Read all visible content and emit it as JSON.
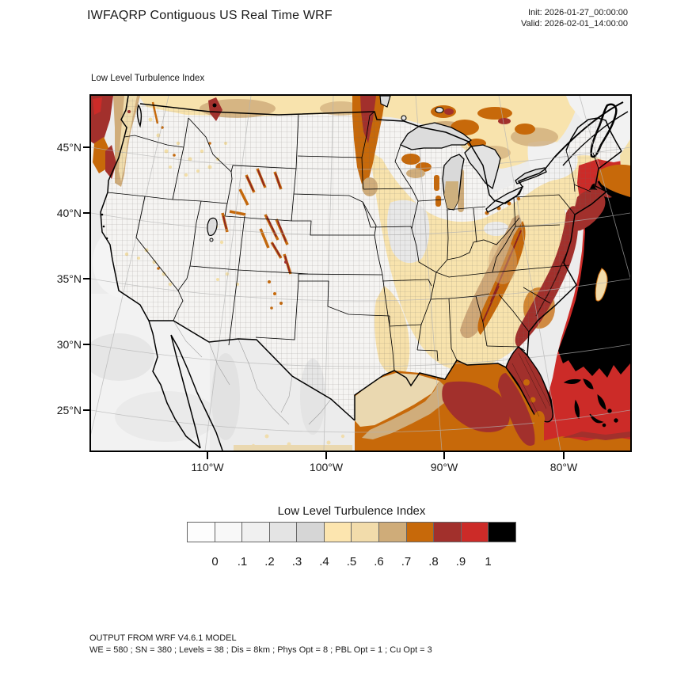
{
  "header": {
    "title": "IWFAQRP Contiguous US Real Time WRF",
    "init_label": "Init: 2026-01-27_00:00:00",
    "valid_label": "Valid: 2026-02-01_14:00:00"
  },
  "map": {
    "subtitle": "Low Level Turbulence Index",
    "lat_ticks": [
      "45°N",
      "40°N",
      "35°N",
      "30°N",
      "25°N"
    ],
    "lon_ticks": [
      "110°W",
      "100°W",
      "90°W",
      "80°W"
    ]
  },
  "colorbar": {
    "title": "Low Level Turbulence Index",
    "tick_labels": [
      "0",
      ".1",
      ".2",
      ".3",
      ".4",
      ".5",
      ".6",
      ".7",
      ".8",
      ".9",
      "1"
    ],
    "colors": [
      "#fdfdfd",
      "#f8f8f8",
      "#f0f0f0",
      "#e4e4e4",
      "#d6d6d6",
      "#fce5af",
      "#f2dcab",
      "#cfac79",
      "#c7690a",
      "#a2302c",
      "#cc2b28",
      "#000000"
    ]
  },
  "footer": {
    "line1": "OUTPUT FROM WRF V4.6.1 MODEL",
    "line2": "WE = 580 ; SN = 380 ; Levels = 38 ; Dis = 8km ; Phys Opt = 8 ; PBL Opt = 1 ; Cu Opt = 3"
  },
  "chart_data": {
    "type": "heatmap",
    "subtype": "filled-contour-weather-map",
    "title": "Low Level Turbulence Index",
    "model": "WRF V4.6.1",
    "run_header": "IWFAQRP Contiguous US Real Time WRF",
    "init_time": "2026-01-27_00:00:00",
    "valid_time": "2026-02-01_14:00:00",
    "region": "Contiguous United States (Lambert conformal)",
    "x_tick_longitudes_deg_west": [
      110,
      100,
      90,
      80
    ],
    "y_tick_latitudes_deg_north": [
      45,
      40,
      35,
      30,
      25
    ],
    "contour_levels": [
      0,
      0.1,
      0.2,
      0.3,
      0.4,
      0.5,
      0.6,
      0.7,
      0.8,
      0.9,
      1
    ],
    "value_range": [
      0,
      1
    ],
    "palette": [
      "#fdfdfd",
      "#f8f8f8",
      "#f0f0f0",
      "#e4e4e4",
      "#d6d6d6",
      "#fce5af",
      "#f2dcab",
      "#cfac79",
      "#c7690a",
      "#a2302c",
      "#cc2b28",
      "#000000"
    ],
    "high_value_regions": [
      "Western Atlantic off the Southeast coast: > 1 (black)",
      "Atlantic / Gulf Stream along East Coast and Florida: 0.8 - 1 (red)",
      "Mid-Atlantic coastal plain NJ to GA: 0.8 - 0.9 (dark red)",
      "Eastern Dakotas - Minnesota north-south band: 0.7 - 0.9",
      "Central Gulf of Mexico: 0.7 - 0.9",
      "Pacific Northwest offshore (top-left corner): 0.7 - 0.9",
      "Rocky Mountain ridges (WY, CO, UT, MT): 0.6 - 0.9 streaks",
      "Appalachians and Ohio Valley: 0.5 - 0.7"
    ],
    "low_value_regions": [
      "Great Basin / Intermountain West and Central Plains: 0 - 0.2 (white/gray)",
      "Eastern Pacific off California and northern Mexico: 0 - 0.2",
      "Midwest and New England interior: 0.4 - 0.5 (cream)"
    ],
    "model_config": "WE = 580 ; SN = 380 ; Levels = 38 ; Dis = 8km ; Phys Opt = 8 ; PBL Opt = 1 ; Cu Opt = 3"
  }
}
